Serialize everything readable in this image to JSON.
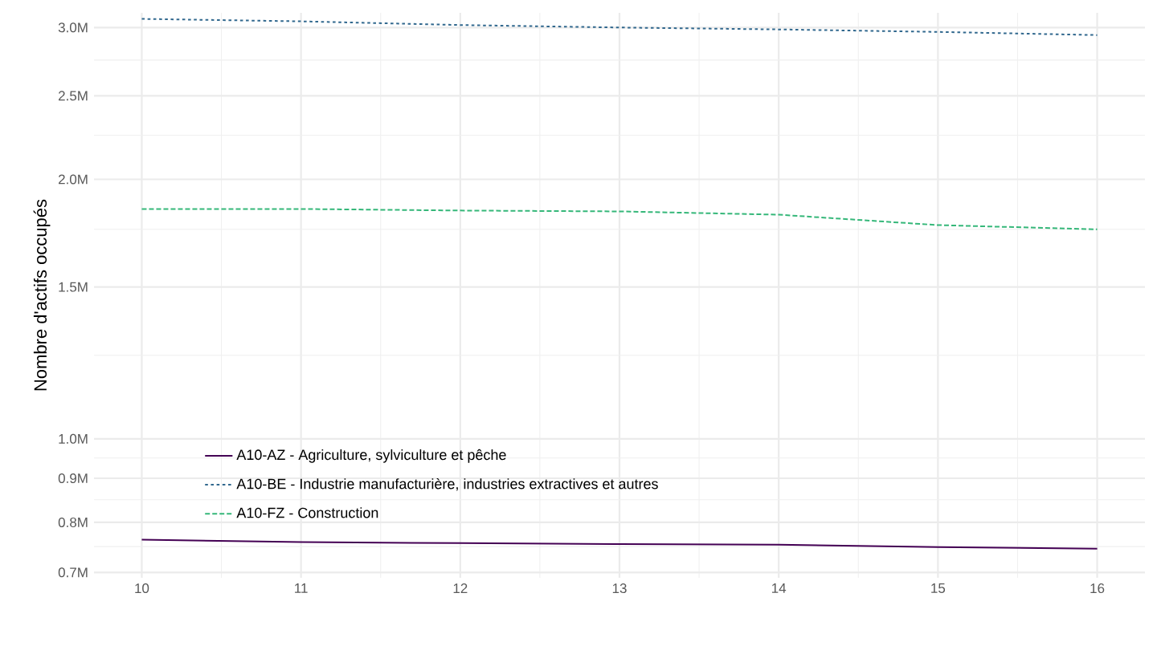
{
  "chart_data": {
    "type": "line",
    "ylabel": "Nombre d'actifs occupés",
    "x": [
      10,
      11,
      12,
      13,
      14,
      15,
      16
    ],
    "series": [
      {
        "name": "A10-AZ - Agriculture, sylviculture et pêche",
        "color": "#440154",
        "line_style": "solid",
        "values": [
          0.764,
          0.759,
          0.757,
          0.755,
          0.754,
          0.749,
          0.746
        ]
      },
      {
        "name": "A10-BE - Industrie manufacturière, industries extractives et autres",
        "color": "#31688e",
        "line_style": "dotted",
        "values": [
          3.07,
          3.05,
          3.02,
          3.0,
          2.985,
          2.965,
          2.94
        ]
      },
      {
        "name": "A10-FZ - Construction",
        "color": "#35b779",
        "line_style": "dashed",
        "values": [
          1.848,
          1.848,
          1.84,
          1.836,
          1.82,
          1.77,
          1.75
        ]
      }
    ],
    "log": "y",
    "xlim": [
      9.7,
      16.3
    ],
    "ylim": [
      0.69,
      3.12
    ],
    "xticks": [
      10,
      11,
      12,
      13,
      14,
      15,
      16
    ],
    "yticks": [
      {
        "value": 0.7,
        "label": "0.7M"
      },
      {
        "value": 0.8,
        "label": "0.8M"
      },
      {
        "value": 0.9,
        "label": "0.9M"
      },
      {
        "value": 1.0,
        "label": "1.0M"
      },
      {
        "value": 1.5,
        "label": "1.5M"
      },
      {
        "value": 2.0,
        "label": "2.0M"
      },
      {
        "value": 2.5,
        "label": "2.5M"
      },
      {
        "value": 3.0,
        "label": "3.0M"
      }
    ],
    "grid": true,
    "legend": "bottom left"
  }
}
